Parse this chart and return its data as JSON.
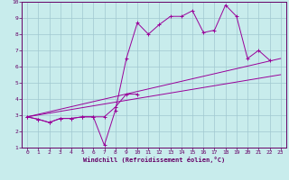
{
  "bg_color": "#c8ecec",
  "grid_color": "#a0c8d0",
  "line_color": "#990099",
  "spine_color": "#660066",
  "xlabel": "Windchill (Refroidissement éolien,°C)",
  "xlim": [
    -0.5,
    23.5
  ],
  "ylim": [
    1,
    10
  ],
  "xticks": [
    0,
    1,
    2,
    3,
    4,
    5,
    6,
    7,
    8,
    9,
    10,
    11,
    12,
    13,
    14,
    15,
    16,
    17,
    18,
    19,
    20,
    21,
    22,
    23
  ],
  "yticks": [
    1,
    2,
    3,
    4,
    5,
    6,
    7,
    8,
    9,
    10
  ],
  "line1_x": [
    0,
    1,
    2,
    3,
    4,
    5,
    6,
    7,
    8,
    9,
    10,
    11,
    12,
    13,
    14,
    15,
    16,
    17,
    18,
    19,
    20,
    21,
    22
  ],
  "line1_y": [
    2.9,
    2.75,
    2.55,
    2.8,
    2.8,
    2.9,
    2.9,
    1.15,
    3.3,
    6.5,
    8.7,
    8.0,
    8.6,
    9.1,
    9.1,
    9.45,
    8.1,
    8.25,
    9.8,
    9.1,
    6.5,
    7.0,
    6.4
  ],
  "line2_x": [
    0,
    1,
    2,
    3,
    4,
    5,
    6,
    7,
    8,
    9,
    10
  ],
  "line2_y": [
    2.9,
    2.75,
    2.55,
    2.8,
    2.8,
    2.9,
    2.9,
    2.9,
    3.5,
    4.3,
    4.3
  ],
  "line3_x": [
    0,
    23
  ],
  "line3_y": [
    2.9,
    6.5
  ],
  "line4_x": [
    0,
    23
  ],
  "line4_y": [
    2.9,
    5.5
  ]
}
